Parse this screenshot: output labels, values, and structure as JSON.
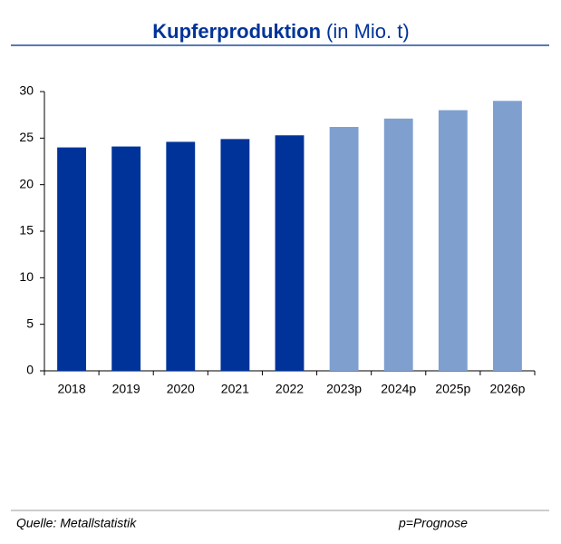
{
  "chart_data": {
    "type": "bar",
    "title": "Kupferproduktion",
    "title_unit": "(in Mio. t)",
    "categories": [
      "2018",
      "2019",
      "2020",
      "2021",
      "2022",
      "2023p",
      "2024p",
      "2025p",
      "2026p"
    ],
    "values": [
      24.0,
      24.1,
      24.6,
      24.9,
      25.3,
      26.2,
      27.1,
      28.0,
      29.0
    ],
    "colors": [
      "#003399",
      "#003399",
      "#003399",
      "#003399",
      "#003399",
      "#7f9fcf",
      "#7f9fcf",
      "#7f9fcf",
      "#7f9fcf"
    ],
    "ylim": [
      0,
      30
    ],
    "yticks": [
      0,
      5,
      10,
      15,
      20,
      25,
      30
    ],
    "grid": false,
    "source": "Quelle: Metallstatistik",
    "note": "p=Prognose"
  }
}
